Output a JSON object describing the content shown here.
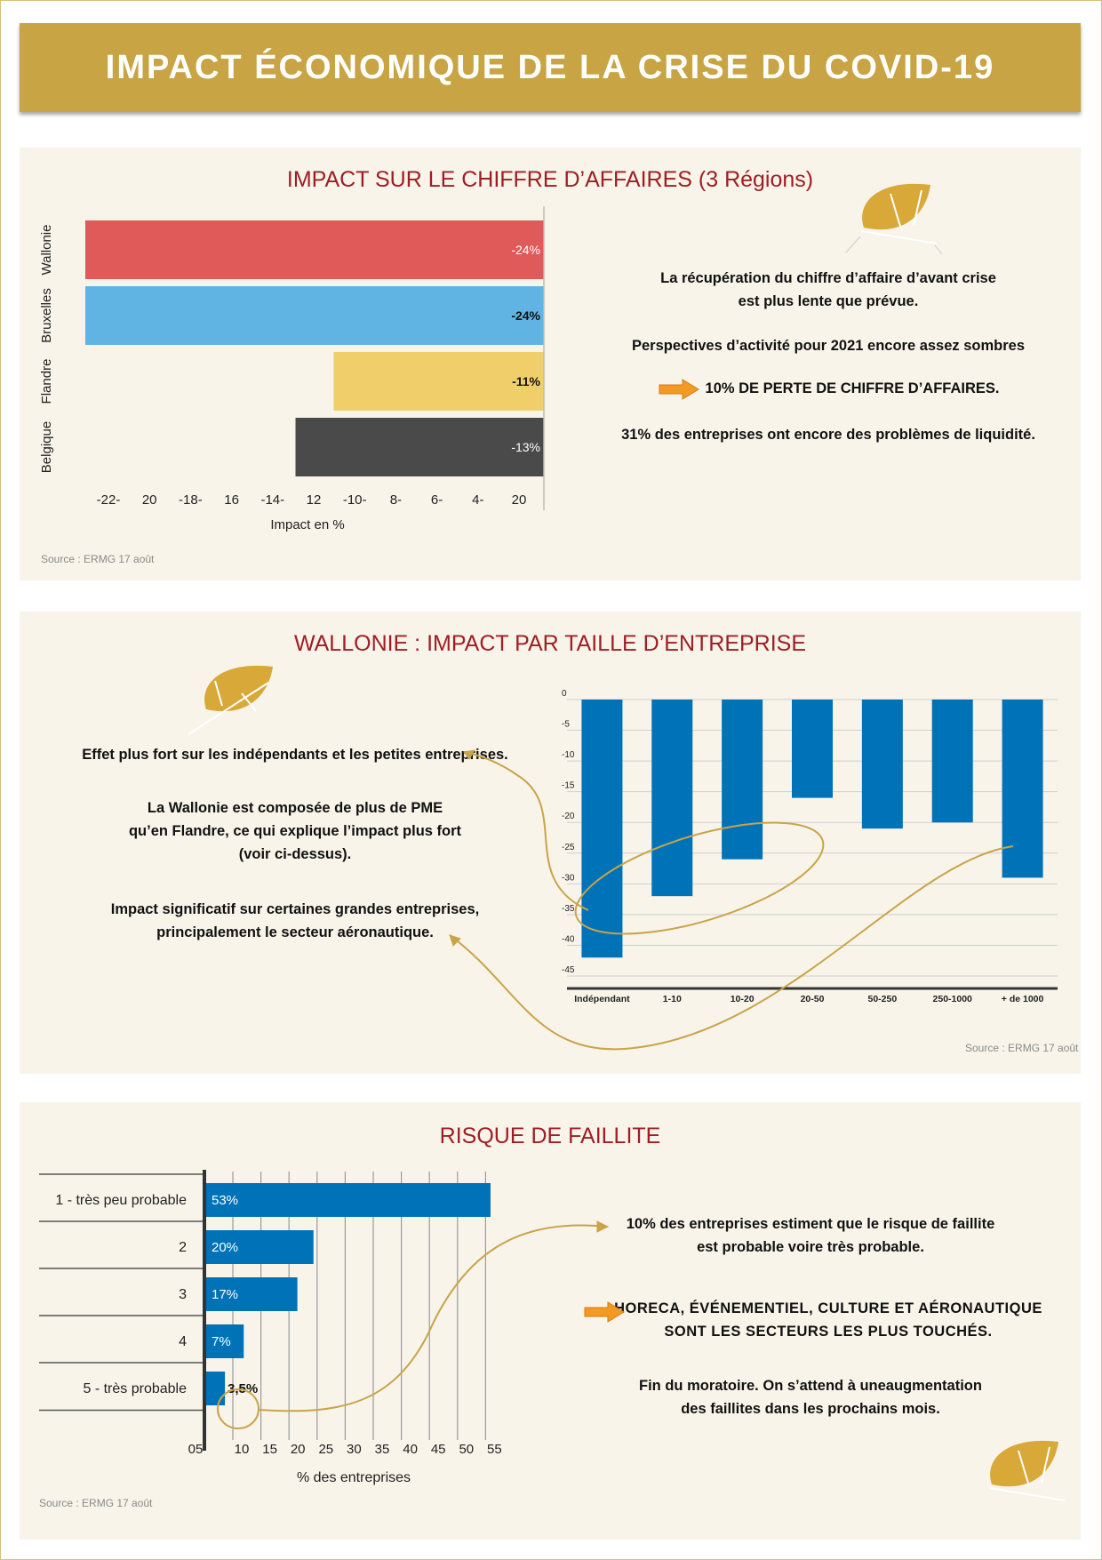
{
  "title": "IMPACT ÉCONOMIQUE DE LA CRISE DU COVID-19",
  "colors": {
    "gold": "#c8a444",
    "red_title": "#9e1e24",
    "panel_bg": "#f8f4ea",
    "blue": "#0072b8"
  },
  "section1": {
    "title": "IMPACT SUR LE CHIFFRE D’AFFAIRES (3 Régions)",
    "source": "Source : ERMG 17 août",
    "text1_line1": "La récupération du chiffre d’affaire d’avant crise",
    "text1_line2": "est plus lente que prévue.",
    "text2": "Perspectives d’activité pour 2021 encore assez sombres",
    "text3": "10% DE PERTE DE CHIFFRE D’AFFAIRES.",
    "text4": "31% des entreprises ont encore des problèmes de liquidité."
  },
  "section2": {
    "title": "WALLONIE : IMPACT PAR TAILLE D’ENTREPRISE",
    "source": "Source : ERMG 17 août",
    "text1": "Effet plus fort sur les indépendants et les petites entreprises.",
    "text2_line1": "La Wallonie est composée de plus de PME",
    "text2_line2": "qu’en Flandre, ce qui explique l’impact plus fort",
    "text2_line3": "(voir ci-dessus).",
    "text3_line1": "Impact significatif sur certaines grandes entreprises,",
    "text3_line2": "principalement le secteur aéronautique."
  },
  "section3": {
    "title": "RISQUE DE FAILLITE",
    "source": "Source : ERMG 17 août",
    "text1_line1": "10% des entreprises estiment que le risque de faillite",
    "text1_line2": "est probable voire très probable.",
    "text2_line1": "HORECA, ÉVÉNEMENTIEL, CULTURE ET AÉRONAUTIQUE",
    "text2_line2": "SONT LES SECTEURS LES PLUS TOUCHÉS.",
    "text3_line1": "Fin du moratoire. On s’attend à uneaugmentation",
    "text3_line2": "des faillites dans les prochains mois."
  },
  "chart_data": [
    {
      "type": "bar",
      "orientation": "horizontal",
      "categories": [
        "Wallonie",
        "Bruxelles",
        "Flandre",
        "Belgique"
      ],
      "values": [
        -24,
        -24,
        -11,
        -13
      ],
      "value_labels": [
        "-24%",
        "-24%",
        "-11%",
        "-13%"
      ],
      "bar_colors": [
        "#e05a5a",
        "#5fb4e4",
        "#f0cf6a",
        "#4a4a4a"
      ],
      "label_colors": [
        "#ffffff",
        "#111111",
        "#111111",
        "#ffffff"
      ],
      "tick_labels": [
        "-22-",
        "20",
        "-18-",
        "16",
        "-14-",
        "12",
        "-10-",
        "8-",
        "6-",
        "4-",
        "20"
      ],
      "xlabel": "Impact en %",
      "xlim": [
        -24,
        0
      ]
    },
    {
      "type": "bar",
      "categories": [
        "Indépendant",
        "1-10",
        "10-20",
        "20-50",
        "50-250",
        "250-1000",
        "+ de 1000"
      ],
      "values": [
        -42,
        -32,
        -26,
        -16,
        -21,
        -20,
        -29
      ],
      "y_ticks": [
        0,
        -5,
        -10,
        -15,
        -20,
        -25,
        -30,
        -35,
        -40,
        -45
      ],
      "ylim": [
        -45,
        0
      ],
      "grid": true
    },
    {
      "type": "bar",
      "orientation": "horizontal",
      "categories": [
        "1 - très peu probable",
        "2",
        "3",
        "4",
        "5 - très probable"
      ],
      "values": [
        53,
        20,
        17,
        7,
        3.5
      ],
      "value_labels": [
        "53%",
        "20%",
        "17%",
        "7%",
        "3,5%"
      ],
      "tick_labels": [
        "05",
        "10",
        "15",
        "20",
        "25",
        "30",
        "35",
        "40",
        "45",
        "50",
        "55"
      ],
      "xlabel": "% des entreprises",
      "xlim": [
        0,
        55
      ],
      "grid": true
    }
  ]
}
